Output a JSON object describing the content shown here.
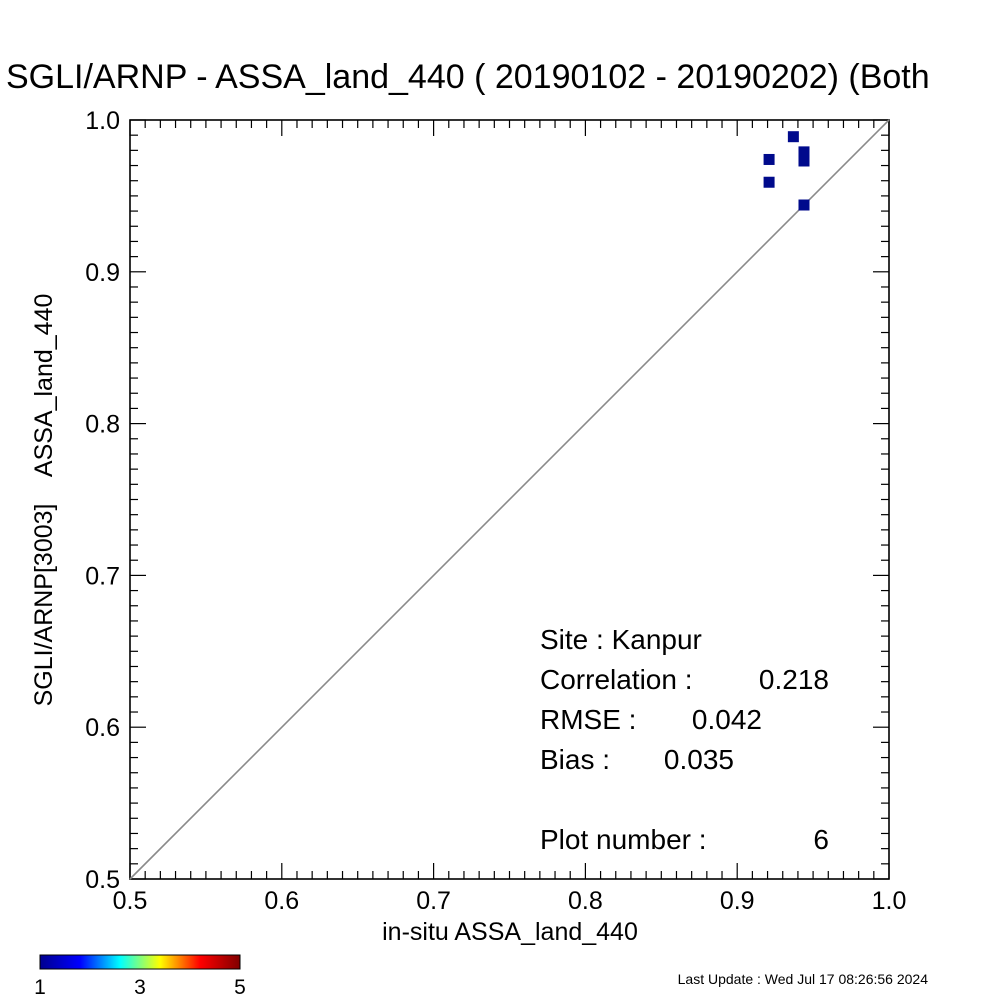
{
  "chart_data": {
    "type": "scatter",
    "title": "SGLI/ARNP - ASSA_land_440 ( 20190102 - 20190202) (Both",
    "xlabel": "in-situ ASSA_land_440",
    "ylabel": "SGLI/ARNP[3003]    ASSA_land_440",
    "xlim": [
      0.5,
      1.0
    ],
    "ylim": [
      0.5,
      1.0
    ],
    "x_ticks": [
      "0.5",
      "0.6",
      "0.7",
      "0.8",
      "0.9",
      "1.0"
    ],
    "y_ticks": [
      "0.5",
      "0.6",
      "0.7",
      "0.8",
      "0.9",
      "1.0"
    ],
    "reference_line": "1:1",
    "points": [
      {
        "x": 0.921,
        "y": 0.974,
        "count": 1
      },
      {
        "x": 0.921,
        "y": 0.959,
        "count": 1
      },
      {
        "x": 0.937,
        "y": 0.989,
        "count": 1
      },
      {
        "x": 0.944,
        "y": 0.979,
        "count": 1
      },
      {
        "x": 0.944,
        "y": 0.973,
        "count": 1
      },
      {
        "x": 0.944,
        "y": 0.944,
        "count": 1
      }
    ],
    "point_color": "#000a8c",
    "stats": {
      "site": "Site : Kanpur",
      "correlation_label": "Correlation :",
      "correlation_value": "0.218",
      "rmse_label": "RMSE :",
      "rmse_value": "0.042",
      "bias_label": "Bias :",
      "bias_value": "0.035",
      "plot_number_label": "Plot number :",
      "plot_number_value": "6"
    },
    "colorbar": {
      "min_label": "1",
      "mid_label": "3",
      "max_label": "5",
      "colors": [
        "#00008f",
        "#0000ff",
        "#00ffff",
        "#ffff00",
        "#ff0000",
        "#800000"
      ]
    }
  },
  "footer": {
    "last_update": "Last Update : Wed Jul 17 08:26:56 2024"
  }
}
